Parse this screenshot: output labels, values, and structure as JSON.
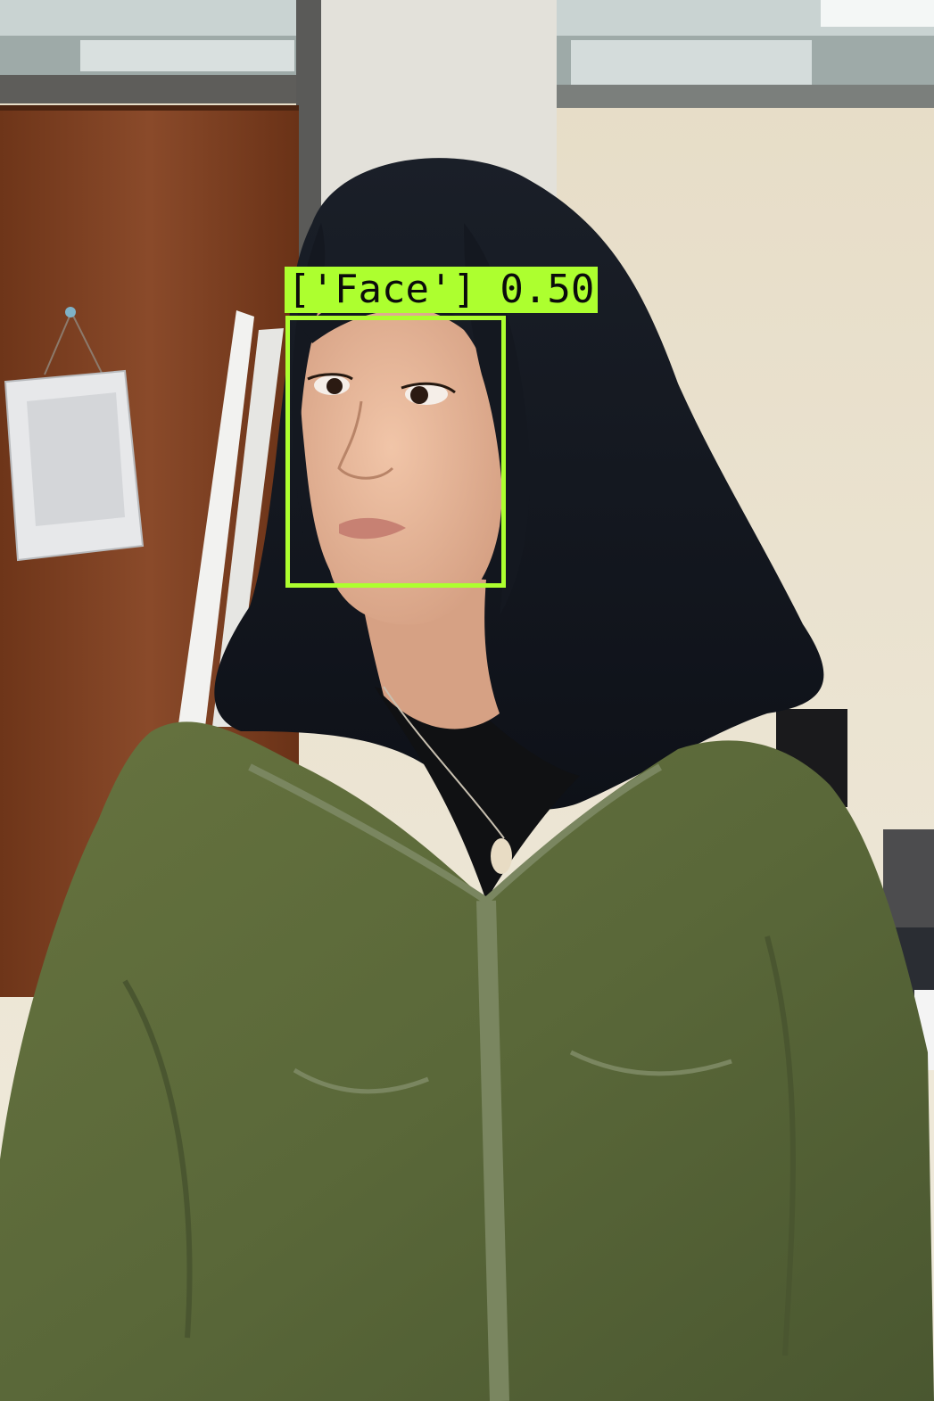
{
  "detections": [
    {
      "label_text": "['Face'] 0.50",
      "class": "Face",
      "score": 0.5
    }
  ],
  "colors": {
    "box": "#adff2f",
    "label_text": "#0b0b0b",
    "jacket": "#5c6a3d",
    "hair": "#141820",
    "wall": "#ece4d2",
    "door": "#7a3f22"
  }
}
